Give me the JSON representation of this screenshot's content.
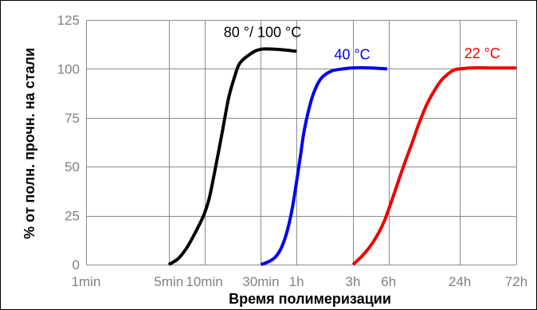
{
  "chart_data": {
    "type": "line",
    "title": "",
    "xlabel": "Время полимеризации",
    "ylabel": "% от полн. прочн. на стали",
    "x_scale": "log",
    "x_unit": "minutes",
    "xlim": [
      1,
      4320
    ],
    "ylim": [
      0,
      125
    ],
    "grid": true,
    "y_ticks": [
      0,
      25,
      50,
      75,
      100,
      125
    ],
    "x_ticks": [
      {
        "label": "1min",
        "value": 1
      },
      {
        "label": "5min",
        "value": 5
      },
      {
        "label": "10min",
        "value": 10
      },
      {
        "label": "30min",
        "value": 30
      },
      {
        "label": "1h",
        "value": 60
      },
      {
        "label": "3h",
        "value": 180
      },
      {
        "label": "6h",
        "value": 360
      },
      {
        "label": "24h",
        "value": 1440
      },
      {
        "label": "72h",
        "value": 4320
      }
    ],
    "series": [
      {
        "name": "80 °/ 100 °C",
        "color": "#000000",
        "x": [
          5,
          6,
          7,
          8,
          9,
          10,
          11,
          12,
          14,
          16,
          18,
          20,
          25,
          30,
          40,
          60
        ],
        "y": [
          0,
          3,
          8,
          14,
          20,
          26,
          34,
          45,
          66,
          85,
          96,
          103,
          108,
          110,
          110,
          109
        ]
      },
      {
        "name": "40 °C",
        "color": "#0000ee",
        "x": [
          30,
          35,
          40,
          45,
          50,
          55,
          60,
          65,
          70,
          80,
          90,
          100,
          120,
          150,
          180,
          250,
          350
        ],
        "y": [
          0,
          1.5,
          4,
          9,
          17,
          28,
          42,
          56,
          69,
          84,
          92,
          96,
          99,
          100,
          100.5,
          100.5,
          100
        ]
      },
      {
        "name": "22 °C",
        "color": "#ee0000",
        "x": [
          180,
          220,
          270,
          330,
          400,
          480,
          560,
          650,
          760,
          880,
          1000,
          1150,
          1300,
          1440,
          1800,
          2500,
          3500,
          4320
        ],
        "y": [
          0,
          5,
          12,
          22,
          36,
          50,
          61,
          72,
          82,
          89,
          94,
          97.5,
          99.5,
          100,
          100.5,
          100.5,
          100.5,
          100.5
        ]
      }
    ]
  }
}
